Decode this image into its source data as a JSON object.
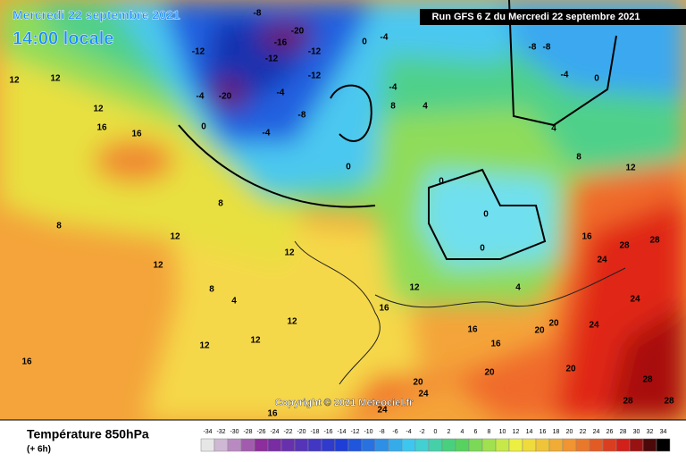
{
  "header": {
    "date": "Mercredi 22 septembre 2021",
    "time": "14:00 locale",
    "run": "Run GFS 6 Z du Mercredi 22 septembre 2021"
  },
  "copyright": "Copyright © 2021 Meteociel.fr",
  "footer": {
    "title": "Température 850hPa",
    "step": "(+ 6h)"
  },
  "map": {
    "contour_labels": [
      -12,
      -8,
      -20,
      -16,
      -12,
      -12,
      -20,
      -4,
      -12,
      -4,
      -8,
      -4,
      0,
      0,
      -4,
      0,
      -8,
      -8,
      -4,
      0,
      -4,
      4,
      8,
      4,
      8,
      12,
      0,
      0,
      0,
      4,
      16,
      28,
      28,
      24,
      24,
      24,
      20,
      20,
      20,
      20,
      16,
      16,
      12,
      16,
      12,
      12,
      12,
      8,
      8,
      12,
      16,
      16,
      12,
      12,
      16,
      12,
      12,
      8,
      4,
      12,
      20,
      24,
      24,
      28,
      28,
      28,
      16
    ]
  },
  "colorbar": {
    "ticks": [
      -34,
      -32,
      -30,
      -28,
      -26,
      -24,
      -22,
      -20,
      -18,
      -16,
      -14,
      -12,
      -10,
      -8,
      -6,
      -4,
      -2,
      0,
      2,
      4,
      6,
      8,
      10,
      12,
      14,
      16,
      18,
      20,
      22,
      24,
      26,
      28,
      30,
      32,
      34
    ]
  }
}
